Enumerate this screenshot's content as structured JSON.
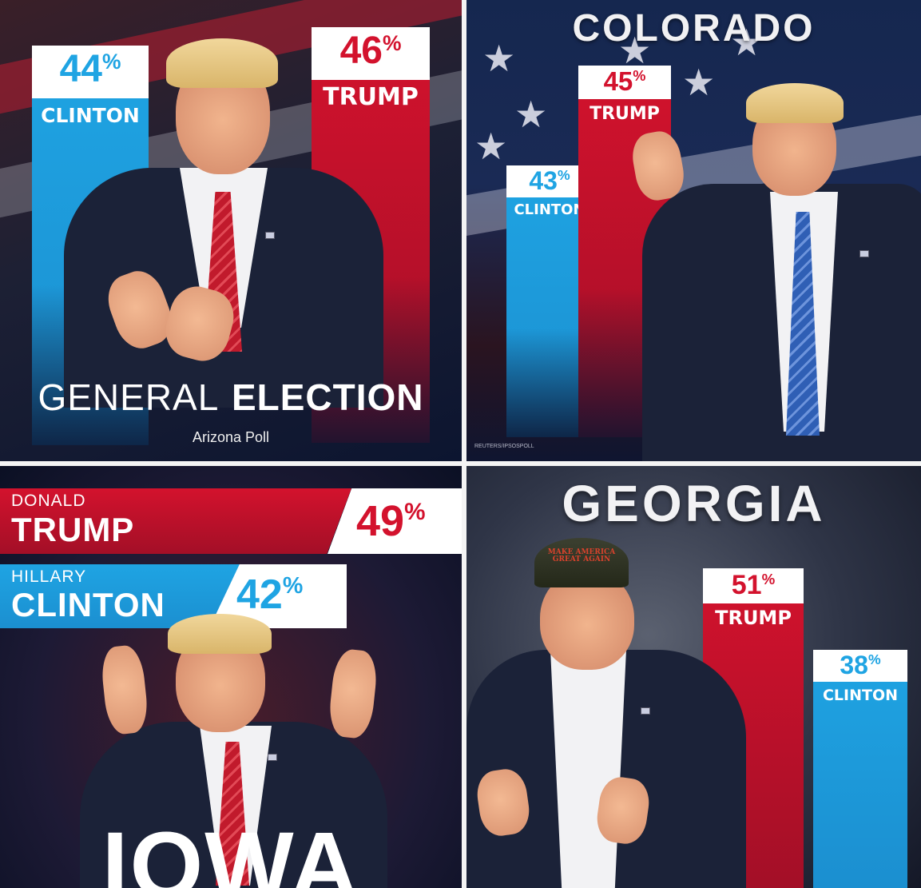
{
  "panels": {
    "arizona": {
      "clinton_pct": "44",
      "clinton_name": "CLINTON",
      "trump_pct": "46",
      "trump_name": "TRUMP",
      "title_light": "GENERAL",
      "title_bold": "ELECTION",
      "subtitle": "Arizona Poll"
    },
    "colorado": {
      "title": "COLORADO",
      "trump_pct": "45",
      "trump_name": "TRUMP",
      "clinton_pct": "43",
      "clinton_name": "CLINTON",
      "source": "REUTERS/IPSOSPOLL"
    },
    "iowa": {
      "trump_first": "DONALD",
      "trump_last": "TRUMP",
      "trump_pct": "49",
      "clinton_first": "HILLARY",
      "clinton_last": "CLINTON",
      "clinton_pct": "42",
      "title": "IOWA"
    },
    "georgia": {
      "title": "GEORGIA",
      "trump_pct": "51",
      "trump_name": "TRUMP",
      "clinton_pct": "38",
      "clinton_name": "CLINTON",
      "cap_text": "MAKE AMERICA GREAT AGAIN"
    }
  },
  "percent_symbol": "%",
  "colors": {
    "trump_red": "#d3122d",
    "clinton_blue": "#1fa4e3",
    "banner_white": "#ffffff"
  }
}
